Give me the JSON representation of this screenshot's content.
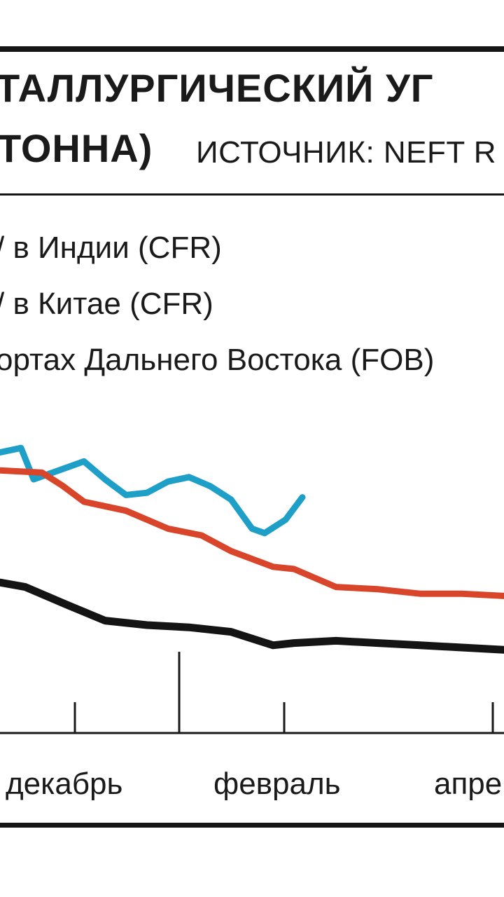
{
  "header": {
    "title_line1": "ТАЛЛУРГИЧЕСКИЙ УГ",
    "title_line2": "ТОННА)",
    "source": "ИСТОЧНИК: NEFT R"
  },
  "legend": [
    {
      "label": "/ в Индии (CFR)",
      "color": "#d9452a"
    },
    {
      "label": "/ в Китае (CFR)",
      "color": "#1d9fc7"
    },
    {
      "label": "ортах Дальнего Востока (FOB)",
      "color": "#141414"
    }
  ],
  "chart_data": {
    "type": "line",
    "x_tick_labels": [
      "декабрь",
      "февраль",
      "апре"
    ],
    "series": [
      {
        "label": "/ в Китае (CFR)",
        "color": "#1d9fc7",
        "points": [
          [
            0,
            0.92
          ],
          [
            0.5,
            0.94
          ],
          [
            0.8,
            0.8
          ],
          [
            1.4,
            0.84
          ],
          [
            2.0,
            0.88
          ],
          [
            2.5,
            0.8
          ],
          [
            3.0,
            0.73
          ],
          [
            3.5,
            0.74
          ],
          [
            4.0,
            0.79
          ],
          [
            4.5,
            0.81
          ],
          [
            5.0,
            0.77
          ],
          [
            5.5,
            0.71
          ],
          [
            6.0,
            0.58
          ],
          [
            6.3,
            0.56
          ],
          [
            6.8,
            0.62
          ],
          [
            7.2,
            0.72
          ]
        ]
      },
      {
        "label": "/ в Индии (CFR)",
        "color": "#d9452a",
        "points": [
          [
            0,
            0.84
          ],
          [
            1.0,
            0.83
          ],
          [
            1.5,
            0.77
          ],
          [
            2.0,
            0.7
          ],
          [
            3.0,
            0.66
          ],
          [
            4.0,
            0.58
          ],
          [
            4.8,
            0.55
          ],
          [
            5.5,
            0.48
          ],
          [
            6.5,
            0.41
          ],
          [
            7.0,
            0.4
          ],
          [
            8.0,
            0.32
          ],
          [
            9.0,
            0.31
          ],
          [
            10.0,
            0.29
          ],
          [
            11.0,
            0.29
          ],
          [
            12.0,
            0.28
          ]
        ]
      },
      {
        "label": "ортах Дальнего Востока (FOB)",
        "color": "#141414",
        "points": [
          [
            0,
            0.34
          ],
          [
            0.6,
            0.32
          ],
          [
            1.6,
            0.24
          ],
          [
            2.5,
            0.17
          ],
          [
            3.5,
            0.15
          ],
          [
            4.5,
            0.14
          ],
          [
            5.5,
            0.12
          ],
          [
            6.0,
            0.09
          ],
          [
            6.5,
            0.06
          ],
          [
            7.0,
            0.07
          ],
          [
            8.0,
            0.08
          ],
          [
            9.0,
            0.07
          ],
          [
            10.0,
            0.06
          ],
          [
            11.0,
            0.05
          ],
          [
            12.0,
            0.04
          ]
        ]
      }
    ]
  }
}
